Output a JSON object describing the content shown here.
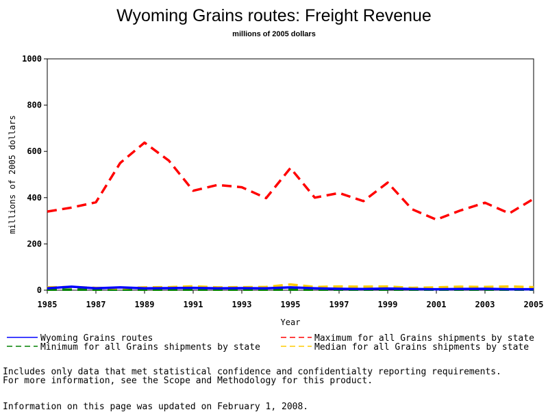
{
  "chart_data": {
    "type": "line",
    "title": "Wyoming Grains routes: Freight Revenue",
    "subtitle": "millions of 2005 dollars",
    "xlabel": "Year",
    "ylabel": "millions of 2005 dollars",
    "xlim": [
      1985,
      2005
    ],
    "ylim": [
      0,
      1000
    ],
    "x_ticks": [
      1985,
      1987,
      1989,
      1991,
      1993,
      1995,
      1997,
      1999,
      2001,
      2003,
      2005
    ],
    "y_ticks": [
      0,
      200,
      400,
      600,
      800,
      1000
    ],
    "grid": false,
    "legend_position": "bottom",
    "x": [
      1985,
      1986,
      1987,
      1988,
      1989,
      1990,
      1991,
      1992,
      1993,
      1994,
      1995,
      1996,
      1997,
      1998,
      1999,
      2000,
      2001,
      2002,
      2003,
      2004,
      2005
    ],
    "series": [
      {
        "name": "Wyoming Grains routes",
        "color": "#0000ff",
        "dash": "solid",
        "values": [
          8,
          15,
          8,
          12,
          8,
          9,
          10,
          8,
          9,
          8,
          12,
          8,
          6,
          5,
          7,
          5,
          4,
          5,
          6,
          4,
          4
        ]
      },
      {
        "name": "Maximum for all Grains shipments by state",
        "color": "#ff0000",
        "dash": "dashed",
        "values": [
          340,
          357,
          380,
          550,
          638,
          560,
          430,
          455,
          445,
          398,
          528,
          400,
          420,
          385,
          465,
          350,
          305,
          345,
          378,
          332,
          395
        ]
      },
      {
        "name": "Minimum for all Grains shipments by state",
        "color": "#008000",
        "dash": "dashed",
        "values": [
          2,
          2,
          2,
          2,
          2,
          2,
          2,
          2,
          2,
          2,
          2,
          2,
          2,
          2,
          2,
          2,
          2,
          2,
          2,
          2,
          2
        ]
      },
      {
        "name": "Median for all Grains shipments by state",
        "color": "#ffcc00",
        "dash": "dashed",
        "values": [
          12,
          14,
          10,
          8,
          12,
          13,
          17,
          12,
          13,
          14,
          25,
          14,
          16,
          15,
          16,
          10,
          12,
          15,
          14,
          16,
          13
        ]
      }
    ]
  },
  "notes": {
    "line1": "Includes only data that met statistical confidence and confidentialty reporting requirements.",
    "line2": "For more information, see the Scope and Methodology for this product.",
    "updated": "Information on this page was updated on February 1, 2008."
  }
}
